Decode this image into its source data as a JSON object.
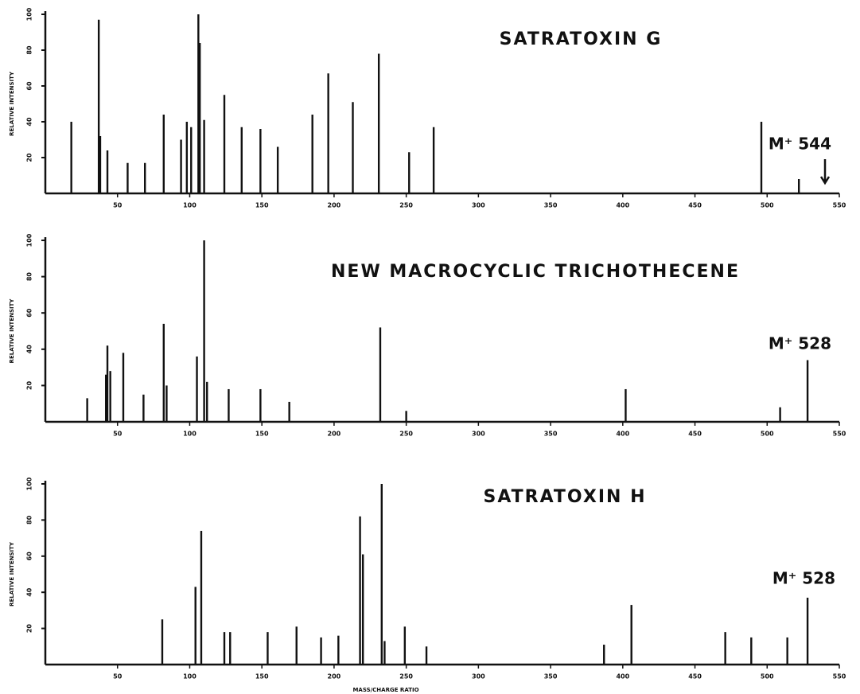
{
  "chart_data": [
    {
      "type": "bar",
      "title": "SATRATOXIN G",
      "annotation": "M⁺ 544",
      "ylabel": "RELATIVE INTENSITY",
      "x": [
        18,
        37,
        38,
        43,
        57,
        69,
        82,
        94,
        98,
        101,
        106,
        107,
        110,
        124,
        136,
        149,
        161,
        185,
        196,
        213,
        231,
        252,
        269,
        496,
        522
      ],
      "values": [
        40,
        97,
        32,
        24,
        17,
        17,
        44,
        30,
        40,
        37,
        100,
        84,
        41,
        55,
        37,
        36,
        26,
        44,
        67,
        51,
        78,
        23,
        37,
        40,
        8
      ],
      "color": "#111111",
      "xlim": [
        0,
        550
      ],
      "ylim": [
        0,
        100
      ],
      "xticks": [
        50,
        100,
        150,
        200,
        250,
        300,
        350,
        400,
        450,
        500,
        550
      ],
      "yticks": [
        20,
        40,
        60,
        80,
        100
      ]
    },
    {
      "type": "bar",
      "title": "NEW MACROCYCLIC TRICHOTHECENE",
      "annotation": "M⁺ 528",
      "ylabel": "RELATIVE INTENSITY",
      "x": [
        29,
        42,
        43,
        45,
        54,
        68,
        82,
        84,
        105,
        110,
        112,
        127,
        149,
        169,
        232,
        250,
        402,
        509,
        528
      ],
      "values": [
        13,
        26,
        42,
        28,
        38,
        15,
        54,
        20,
        36,
        100,
        22,
        18,
        18,
        11,
        52,
        6,
        18,
        8,
        34
      ],
      "color": "#111111",
      "xlim": [
        0,
        550
      ],
      "ylim": [
        0,
        100
      ],
      "xticks": [
        50,
        100,
        150,
        200,
        250,
        300,
        350,
        400,
        450,
        500,
        550
      ],
      "yticks": [
        20,
        40,
        60,
        80,
        100
      ]
    },
    {
      "type": "bar",
      "title": "SATRATOXIN H",
      "annotation": "M⁺ 528",
      "ylabel": "RELATIVE INTENSITY",
      "xlabel": "MASS/CHARGE RATIO",
      "x": [
        81,
        104,
        108,
        124,
        128,
        154,
        174,
        191,
        203,
        218,
        220,
        233,
        235,
        249,
        264,
        387,
        406,
        471,
        489,
        514,
        528
      ],
      "values": [
        25,
        43,
        74,
        18,
        18,
        18,
        21,
        15,
        16,
        82,
        61,
        100,
        13,
        21,
        10,
        11,
        33,
        18,
        15,
        15,
        37
      ],
      "color": "#111111",
      "xlim": [
        0,
        550
      ],
      "ylim": [
        0,
        100
      ],
      "xticks": [
        50,
        100,
        150,
        200,
        250,
        300,
        350,
        400,
        450,
        500,
        550
      ],
      "yticks": [
        20,
        40,
        60,
        80,
        100
      ]
    }
  ]
}
